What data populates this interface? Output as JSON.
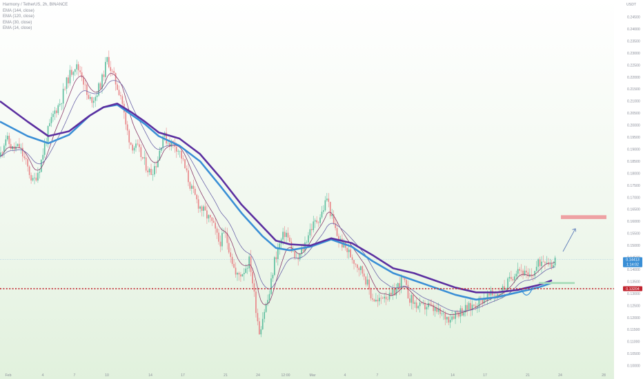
{
  "chart_data": {
    "type": "candlestick",
    "title": "Harmony / TetherUS, 2h, BINANCE",
    "currency": "USDT",
    "indicators": [
      {
        "name": "EMA (144, close)",
        "color": "#5b2fa0"
      },
      {
        "name": "EMA (120, close)",
        "color": "#3a8fd6"
      },
      {
        "name": "EMA (30, close)",
        "color": "#6a63a8"
      },
      {
        "name": "EMA (14, close)",
        "color": "#8a3a6a"
      }
    ],
    "y_ticks": [
      "0.24500",
      "0.24000",
      "0.23500",
      "0.23000",
      "0.22500",
      "0.22000",
      "0.21500",
      "0.21000",
      "0.20500",
      "0.20000",
      "0.19500",
      "0.19000",
      "0.18500",
      "0.18000",
      "0.17500",
      "0.17000",
      "0.16500",
      "0.16000",
      "0.15500",
      "0.15000",
      "0.14500",
      "0.14000",
      "0.13500",
      "0.13000",
      "0.12500",
      "0.12000",
      "0.11500",
      "0.11000",
      "0.10500",
      "0.10000"
    ],
    "x_ticks": [
      "Feb",
      "4",
      "7",
      "10",
      "14",
      "17",
      "21",
      "24",
      "12:00",
      "Mar",
      "4",
      "7",
      "10",
      "14",
      "17",
      "21",
      "24",
      "28"
    ],
    "ylim": [
      0.0985,
      0.2495
    ],
    "current_price": {
      "value": 0.14413,
      "label": "0.14413",
      "countdown": "1:14:02",
      "color": "#3a8fd6"
    },
    "support_level": {
      "value": 0.13204,
      "label": "0.13204",
      "color": "#c2242f"
    },
    "target_zone": {
      "low": 0.161,
      "high": 0.1626,
      "color": "#eea1a3"
    },
    "entry_zone": {
      "low": 0.134,
      "high": 0.1348,
      "color": "#a8dcb9"
    },
    "projection_arrow": {
      "from": 0.1475,
      "to": 0.157,
      "color": "#5a79b8"
    },
    "series": {
      "price_path": [
        [
          0,
          0.187
        ],
        [
          8,
          0.195
        ],
        [
          18,
          0.19
        ],
        [
          28,
          0.191
        ],
        [
          38,
          0.184
        ],
        [
          48,
          0.176
        ],
        [
          58,
          0.183
        ],
        [
          68,
          0.196
        ],
        [
          78,
          0.205
        ],
        [
          88,
          0.21
        ],
        [
          98,
          0.219
        ],
        [
          108,
          0.225
        ],
        [
          118,
          0.222
        ],
        [
          128,
          0.21
        ],
        [
          138,
          0.212
        ],
        [
          148,
          0.219
        ],
        [
          156,
          0.228
        ],
        [
          162,
          0.222
        ],
        [
          170,
          0.216
        ],
        [
          176,
          0.212
        ],
        [
          182,
          0.2
        ],
        [
          190,
          0.192
        ],
        [
          200,
          0.19
        ],
        [
          210,
          0.184
        ],
        [
          218,
          0.18
        ],
        [
          228,
          0.185
        ],
        [
          236,
          0.196
        ],
        [
          244,
          0.193
        ],
        [
          254,
          0.192
        ],
        [
          262,
          0.188
        ],
        [
          270,
          0.18
        ],
        [
          278,
          0.173
        ],
        [
          288,
          0.167
        ],
        [
          298,
          0.163
        ],
        [
          308,
          0.159
        ],
        [
          318,
          0.151
        ],
        [
          326,
          0.155
        ],
        [
          334,
          0.147
        ],
        [
          342,
          0.137
        ],
        [
          352,
          0.139
        ],
        [
          362,
          0.144
        ],
        [
          370,
          0.126
        ],
        [
          376,
          0.114
        ],
        [
          382,
          0.122
        ],
        [
          390,
          0.129
        ],
        [
          398,
          0.144
        ],
        [
          406,
          0.151
        ],
        [
          414,
          0.156
        ],
        [
          422,
          0.149
        ],
        [
          430,
          0.143
        ],
        [
          440,
          0.149
        ],
        [
          448,
          0.156
        ],
        [
          458,
          0.16
        ],
        [
          466,
          0.163
        ],
        [
          474,
          0.17
        ],
        [
          482,
          0.16
        ],
        [
          490,
          0.153
        ],
        [
          498,
          0.15
        ],
        [
          508,
          0.146
        ],
        [
          518,
          0.142
        ],
        [
          528,
          0.138
        ],
        [
          538,
          0.129
        ],
        [
          548,
          0.126
        ],
        [
          556,
          0.13
        ],
        [
          566,
          0.128
        ],
        [
          576,
          0.133
        ],
        [
          584,
          0.136
        ],
        [
          592,
          0.129
        ],
        [
          600,
          0.126
        ],
        [
          610,
          0.124
        ],
        [
          620,
          0.125
        ],
        [
          630,
          0.123
        ],
        [
          640,
          0.121
        ],
        [
          650,
          0.12
        ],
        [
          660,
          0.122
        ],
        [
          670,
          0.123
        ],
        [
          680,
          0.124
        ],
        [
          690,
          0.126
        ],
        [
          700,
          0.128
        ],
        [
          710,
          0.129
        ],
        [
          720,
          0.13
        ],
        [
          730,
          0.132
        ],
        [
          740,
          0.136
        ],
        [
          750,
          0.141
        ],
        [
          758,
          0.139
        ],
        [
          766,
          0.136
        ],
        [
          774,
          0.139
        ],
        [
          782,
          0.143
        ],
        [
          790,
          0.145
        ],
        [
          800,
          0.142
        ],
        [
          806,
          0.146
        ]
      ],
      "ema144": [
        [
          0,
          0.21
        ],
        [
          40,
          0.2015
        ],
        [
          70,
          0.1955
        ],
        [
          100,
          0.1975
        ],
        [
          130,
          0.204
        ],
        [
          150,
          0.2075
        ],
        [
          170,
          0.209
        ],
        [
          190,
          0.2055
        ],
        [
          210,
          0.2015
        ],
        [
          230,
          0.197
        ],
        [
          260,
          0.1945
        ],
        [
          290,
          0.188
        ],
        [
          320,
          0.178
        ],
        [
          350,
          0.167
        ],
        [
          380,
          0.158
        ],
        [
          400,
          0.152
        ],
        [
          420,
          0.1505
        ],
        [
          450,
          0.15
        ],
        [
          480,
          0.153
        ],
        [
          510,
          0.151
        ],
        [
          540,
          0.146
        ],
        [
          570,
          0.1405
        ],
        [
          600,
          0.1385
        ],
        [
          630,
          0.1355
        ],
        [
          660,
          0.1325
        ],
        [
          690,
          0.1305
        ],
        [
          720,
          0.1305
        ],
        [
          750,
          0.1315
        ],
        [
          780,
          0.1335
        ],
        [
          800,
          0.1355
        ]
      ],
      "ema120": [
        [
          0,
          0.2015
        ],
        [
          40,
          0.1955
        ],
        [
          70,
          0.1925
        ],
        [
          100,
          0.196
        ],
        [
          130,
          0.204
        ],
        [
          150,
          0.2075
        ],
        [
          170,
          0.2085
        ],
        [
          190,
          0.2045
        ],
        [
          210,
          0.2005
        ],
        [
          230,
          0.1955
        ],
        [
          260,
          0.1915
        ],
        [
          290,
          0.185
        ],
        [
          320,
          0.1745
        ],
        [
          350,
          0.1635
        ],
        [
          380,
          0.154
        ],
        [
          400,
          0.149
        ],
        [
          420,
          0.148
        ],
        [
          450,
          0.1495
        ],
        [
          480,
          0.1525
        ],
        [
          510,
          0.1495
        ],
        [
          540,
          0.1435
        ],
        [
          570,
          0.1385
        ],
        [
          600,
          0.1355
        ],
        [
          630,
          0.1325
        ],
        [
          660,
          0.1295
        ],
        [
          690,
          0.1275
        ],
        [
          720,
          0.1285
        ],
        [
          750,
          0.1305
        ],
        [
          780,
          0.1325
        ],
        [
          800,
          0.1345
        ]
      ]
    }
  }
}
